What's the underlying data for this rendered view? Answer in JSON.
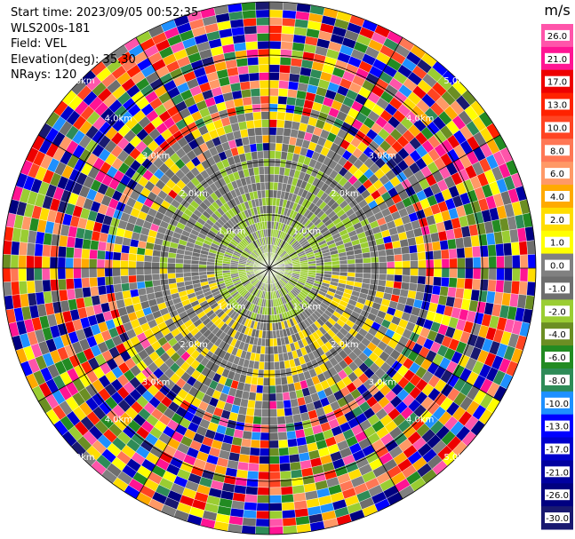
{
  "header": {
    "start_time": "Start time: 2023/09/05 00:52:35",
    "instrument": "WLS200s-181",
    "field": "Field: VEL",
    "elevation": "Elevation(deg): 35.30",
    "nrays": "NRays: 120"
  },
  "chart_data": {
    "type": "heatmap",
    "subtype": "polar-ppi",
    "field": "VEL",
    "elevation_deg": 35.3,
    "n_rays": 120,
    "range_rings_km": [
      1.0,
      2.0,
      3.0,
      4.0,
      5.0
    ],
    "ring_labels": [
      "1.0km",
      "2.0km",
      "3.0km",
      "4.0km",
      "5.0km"
    ],
    "colorbar": {
      "unit": "m/s",
      "ticks": [
        "26.0",
        "21.0",
        "17.0",
        "13.0",
        "10.0",
        "8.0",
        "6.0",
        "4.0",
        "2.0",
        "1.0",
        "0.0",
        "-1.0",
        "-2.0",
        "-4.0",
        "-6.0",
        "-8.0",
        "-10.0",
        "-13.0",
        "-17.0",
        "-21.0",
        "-26.0",
        "-30.0"
      ],
      "colors": [
        "#ff55aa",
        "#ff1493",
        "#ee0000",
        "#ff2200",
        "#ff4422",
        "#ff7755",
        "#ff9966",
        "#ffaa00",
        "#ffdd00",
        "#ffff00",
        "#808080",
        "#6e6e6e",
        "#9acd32",
        "#6b8e23",
        "#228b22",
        "#2e8b57",
        "#1e90ff",
        "#0000ff",
        "#0000cd",
        "#0000a0",
        "#000080",
        "#191970"
      ]
    },
    "grid": true
  }
}
